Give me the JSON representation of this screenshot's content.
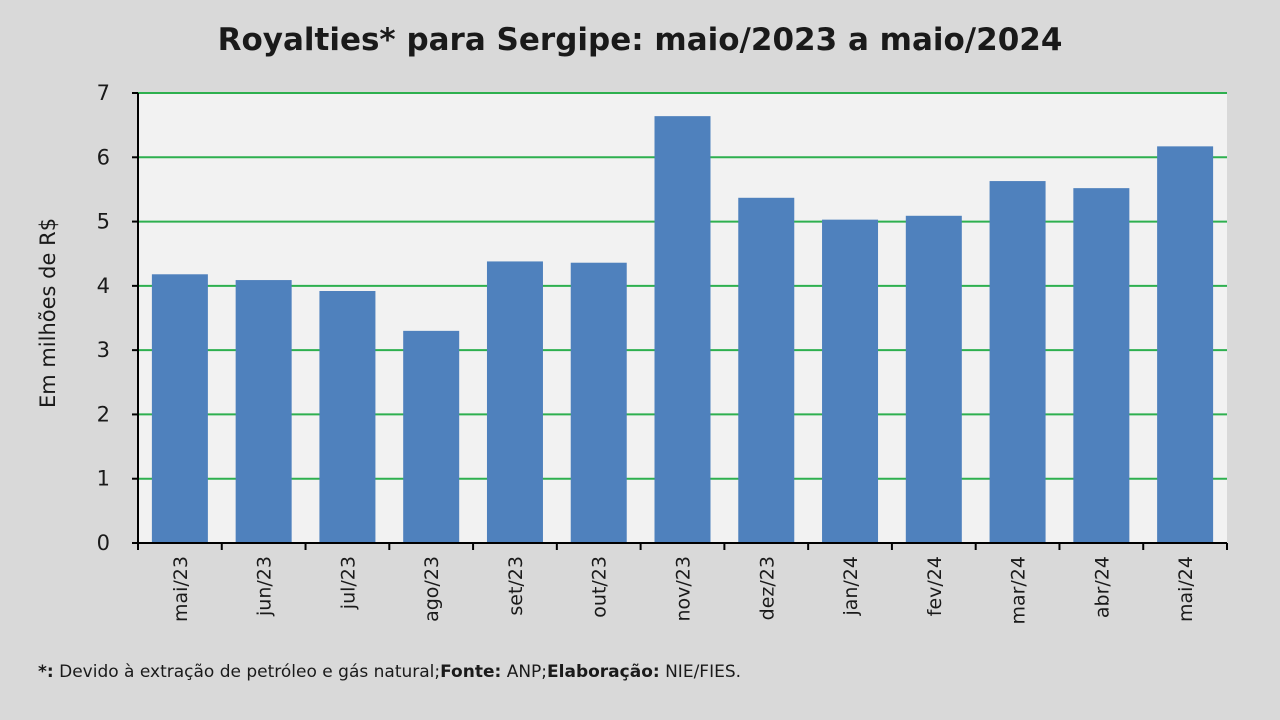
{
  "chart_data": {
    "type": "bar",
    "title": "Royalties* para Sergipe: maio/2023 a maio/2024",
    "ylabel": "Em milhões de R$",
    "xlabel": "",
    "ylim": [
      0,
      7
    ],
    "yticks": [
      "0",
      "1",
      "2",
      "3",
      "4",
      "5",
      "6",
      "7"
    ],
    "grid": true,
    "categories": [
      "mai/23",
      "jun/23",
      "jul/23",
      "ago/23",
      "set/23",
      "out/23",
      "nov/23",
      "dez/23",
      "jan/24",
      "fev/24",
      "mar/24",
      "abr/24",
      "mai/24"
    ],
    "values": [
      4.18,
      4.09,
      3.92,
      3.3,
      4.38,
      4.36,
      6.64,
      5.37,
      5.03,
      5.09,
      5.63,
      5.52,
      6.17
    ]
  },
  "colors": {
    "bar": "#4f81bd",
    "grid": "#2eb04f",
    "plot_bg": "#f2f2f2",
    "page_bg": "#d9d9d9"
  },
  "footnote": {
    "marker": "*:",
    "note": " Devido à extração de petróleo e gás natural;",
    "source_label": "Fonte:",
    "source": " ANP;",
    "elab_label": "Elaboração:",
    "elab": " NIE/FIES."
  }
}
